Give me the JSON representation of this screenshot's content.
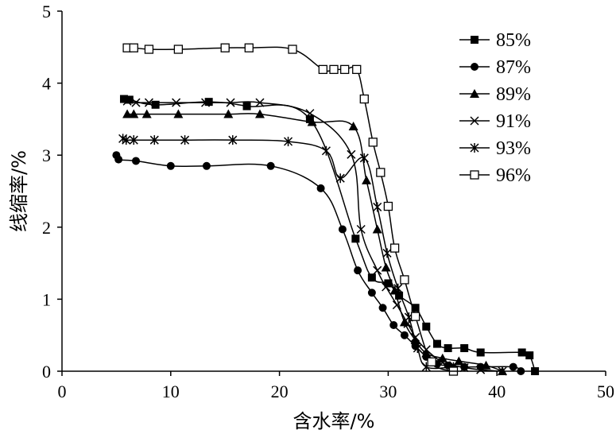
{
  "chart_data": {
    "type": "line",
    "title": "",
    "xlabel": "含水率/%",
    "ylabel": "线缩率/%",
    "xlim": [
      0,
      50
    ],
    "ylim": [
      0,
      5
    ],
    "xticks": [
      0,
      10,
      20,
      30,
      40,
      50
    ],
    "yticks": [
      0,
      1,
      2,
      3,
      4,
      5
    ],
    "grid": false,
    "legend_position": "top-right",
    "series": [
      {
        "name": "85%",
        "marker": "square-filled",
        "x": [
          5.7,
          6.2,
          8.6,
          13.5,
          17.0,
          22.8,
          27.0,
          28.5,
          30.0,
          31.0,
          32.5,
          33.5,
          34.5,
          35.5,
          37.0,
          38.5,
          42.3,
          43.0,
          43.5
        ],
        "y": [
          3.78,
          3.77,
          3.7,
          3.74,
          3.68,
          3.5,
          1.84,
          1.3,
          1.22,
          1.05,
          0.88,
          0.62,
          0.38,
          0.32,
          0.32,
          0.26,
          0.26,
          0.22,
          0.0
        ]
      },
      {
        "name": "87%",
        "marker": "circle-filled",
        "x": [
          5.0,
          5.2,
          6.8,
          10.0,
          13.3,
          19.2,
          23.8,
          25.8,
          27.2,
          28.5,
          29.5,
          30.5,
          31.5,
          32.5,
          33.5,
          34.5,
          35.5,
          37.0,
          38.5,
          41.5,
          42.2
        ],
        "y": [
          3.0,
          2.94,
          2.92,
          2.85,
          2.85,
          2.85,
          2.54,
          1.97,
          1.4,
          1.09,
          0.88,
          0.64,
          0.5,
          0.35,
          0.2,
          0.1,
          0.08,
          0.06,
          0.06,
          0.06,
          0.0
        ]
      },
      {
        "name": "89%",
        "marker": "triangle-filled",
        "x": [
          6.0,
          6.6,
          7.8,
          10.7,
          15.3,
          18.2,
          23.0,
          26.8,
          28.0,
          29.0,
          29.8,
          30.6,
          31.5,
          32.5,
          33.5,
          35.0,
          36.5,
          39.0,
          40.5
        ],
        "y": [
          3.57,
          3.57,
          3.57,
          3.57,
          3.57,
          3.57,
          3.46,
          3.4,
          2.65,
          1.97,
          1.44,
          1.12,
          0.68,
          0.43,
          0.25,
          0.18,
          0.14,
          0.08,
          0.0
        ]
      },
      {
        "name": "91%",
        "marker": "x",
        "x": [
          6.0,
          6.8,
          8.0,
          10.5,
          13.2,
          15.5,
          18.2,
          22.8,
          26.6,
          27.5,
          29.0,
          29.8,
          30.8,
          31.8,
          32.5,
          33.5,
          35.0,
          36.0,
          37.0,
          38.5,
          40.5
        ],
        "y": [
          3.75,
          3.73,
          3.73,
          3.73,
          3.73,
          3.73,
          3.73,
          3.58,
          3.01,
          1.97,
          1.4,
          1.17,
          0.92,
          0.66,
          0.47,
          0.3,
          0.12,
          0.08,
          0.05,
          0.02,
          0.0
        ]
      },
      {
        "name": "93%",
        "marker": "asterisk",
        "x": [
          5.6,
          5.9,
          6.6,
          8.5,
          11.3,
          15.7,
          20.8,
          24.3,
          25.6,
          27.8,
          29.0,
          29.9,
          30.9,
          31.9,
          32.7,
          33.5,
          36.0
        ],
        "y": [
          3.23,
          3.21,
          3.21,
          3.21,
          3.21,
          3.21,
          3.19,
          3.06,
          2.68,
          2.96,
          2.28,
          1.64,
          1.15,
          0.75,
          0.32,
          0.06,
          0.06
        ]
      },
      {
        "name": "96%",
        "marker": "square-open",
        "x": [
          6.0,
          6.6,
          8.0,
          10.7,
          15.0,
          17.2,
          21.2,
          24.0,
          25.0,
          26.0,
          27.1,
          27.8,
          28.6,
          29.3,
          30.0,
          30.6,
          31.5,
          32.5,
          34.0,
          36.0
        ],
        "y": [
          4.49,
          4.49,
          4.47,
          4.47,
          4.49,
          4.49,
          4.47,
          4.19,
          4.19,
          4.19,
          4.19,
          3.78,
          3.18,
          2.76,
          2.29,
          1.71,
          1.27,
          0.76,
          0.13,
          0.0
        ]
      }
    ]
  }
}
